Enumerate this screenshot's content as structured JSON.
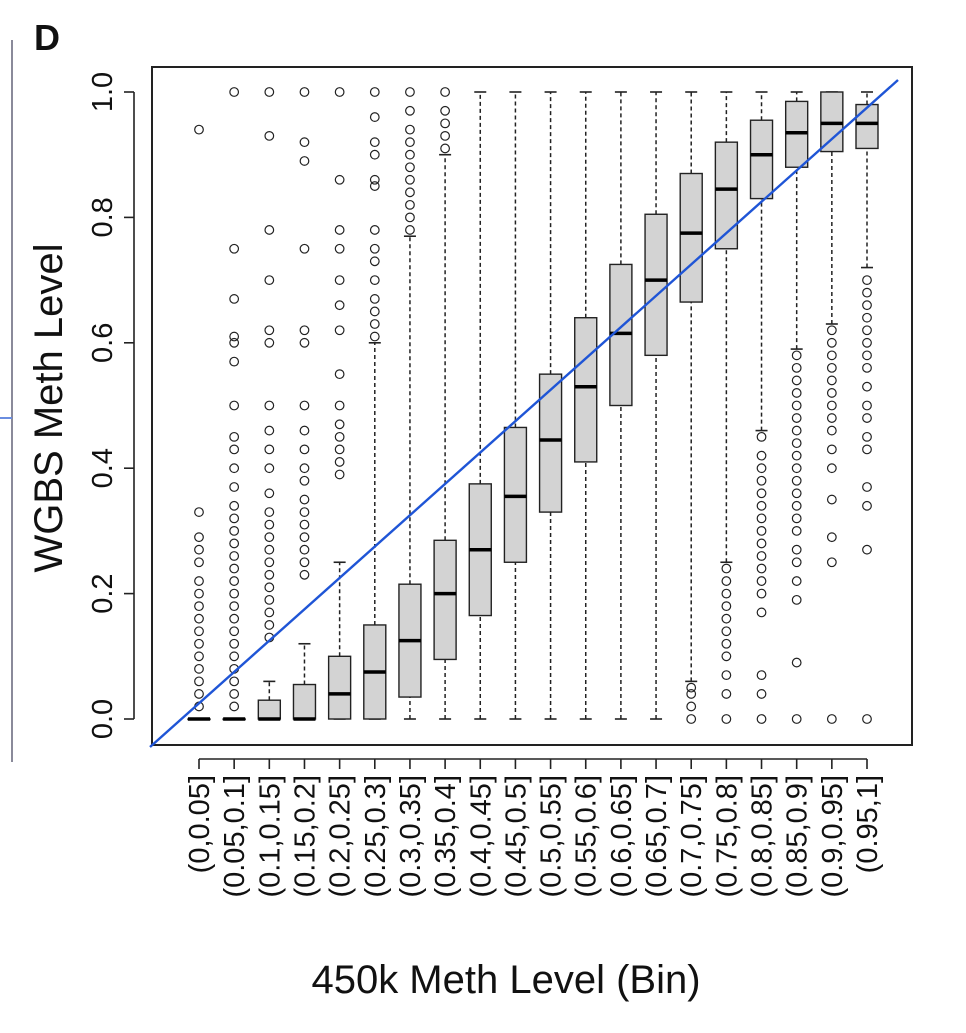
{
  "panel_letter": "D",
  "chart_data": {
    "type": "box",
    "xlabel": "450k Meth Level (Bin)",
    "ylabel": "WGBS Meth Level",
    "ylim": [
      0.0,
      1.0
    ],
    "yticks": [
      0.0,
      0.2,
      0.4,
      0.6,
      0.8,
      1.0
    ],
    "ytick_labels": [
      "0.0",
      "0.2",
      "0.4",
      "0.6",
      "0.8",
      "1.0"
    ],
    "categories": [
      "(0,0.05]",
      "(0.05,0.1]",
      "(0.1,0.15]",
      "(0.15,0.2]",
      "(0.2,0.25]",
      "(0.25,0.3]",
      "(0.3,0.35]",
      "(0.35,0.4]",
      "(0.4,0.45]",
      "(0.45,0.5]",
      "(0.5,0.55]",
      "(0.55,0.6]",
      "(0.6,0.65]",
      "(0.65,0.7]",
      "(0.7,0.75]",
      "(0.75,0.8]",
      "(0.8,0.85]",
      "(0.85,0.9]",
      "(0.9,0.95]",
      "(0.95,1]"
    ],
    "boxes": [
      {
        "min": 0,
        "q1": 0,
        "median": 0,
        "q3": 0,
        "max": 0,
        "outliers": [
          0.02,
          0.04,
          0.06,
          0.08,
          0.1,
          0.12,
          0.14,
          0.16,
          0.18,
          0.2,
          0.22,
          0.25,
          0.27,
          0.29,
          0.33,
          0.94
        ]
      },
      {
        "min": 0,
        "q1": 0,
        "median": 0,
        "q3": 0,
        "max": 0,
        "outliers": [
          0.02,
          0.04,
          0.06,
          0.08,
          0.1,
          0.12,
          0.14,
          0.16,
          0.18,
          0.2,
          0.22,
          0.24,
          0.26,
          0.28,
          0.3,
          0.32,
          0.34,
          0.37,
          0.4,
          0.43,
          0.45,
          0.5,
          0.57,
          0.6,
          0.61,
          0.67,
          0.75,
          1.0
        ]
      },
      {
        "min": 0,
        "q1": 0,
        "median": 0,
        "q3": 0.03,
        "max": 0.06,
        "outliers": [
          0.13,
          0.15,
          0.17,
          0.19,
          0.21,
          0.23,
          0.25,
          0.27,
          0.29,
          0.31,
          0.33,
          0.36,
          0.4,
          0.43,
          0.46,
          0.5,
          0.6,
          0.62,
          0.7,
          0.78,
          0.93,
          1.0
        ]
      },
      {
        "min": 0,
        "q1": 0,
        "median": 0,
        "q3": 0.055,
        "max": 0.12,
        "outliers": [
          0.23,
          0.25,
          0.27,
          0.29,
          0.31,
          0.33,
          0.35,
          0.38,
          0.4,
          0.43,
          0.46,
          0.5,
          0.6,
          0.62,
          0.75,
          0.89,
          0.92,
          1.0
        ]
      },
      {
        "min": 0,
        "q1": 0,
        "median": 0.04,
        "q3": 0.1,
        "max": 0.25,
        "outliers": [
          0.39,
          0.41,
          0.43,
          0.45,
          0.47,
          0.5,
          0.55,
          0.62,
          0.66,
          0.7,
          0.75,
          0.78,
          0.86,
          1.0
        ]
      },
      {
        "min": 0,
        "q1": 0,
        "median": 0.075,
        "q3": 0.15,
        "max": 0.6,
        "outliers": [
          0.61,
          0.63,
          0.65,
          0.67,
          0.7,
          0.73,
          0.75,
          0.78,
          0.85,
          0.86,
          0.9,
          0.92,
          0.96,
          1.0
        ]
      },
      {
        "min": 0,
        "q1": 0.035,
        "median": 0.125,
        "q3": 0.215,
        "max": 0.77,
        "outliers": [
          0.78,
          0.8,
          0.82,
          0.84,
          0.86,
          0.88,
          0.9,
          0.92,
          0.94,
          0.97,
          1.0
        ]
      },
      {
        "min": 0,
        "q1": 0.095,
        "median": 0.2,
        "q3": 0.285,
        "max": 0.9,
        "outliers": [
          0.91,
          0.93,
          0.95,
          0.97,
          1.0
        ]
      },
      {
        "min": 0,
        "q1": 0.165,
        "median": 0.27,
        "q3": 0.375,
        "max": 1.0,
        "outliers": []
      },
      {
        "min": 0,
        "q1": 0.25,
        "median": 0.355,
        "q3": 0.465,
        "max": 1.0,
        "outliers": []
      },
      {
        "min": 0,
        "q1": 0.33,
        "median": 0.445,
        "q3": 0.55,
        "max": 1.0,
        "outliers": []
      },
      {
        "min": 0,
        "q1": 0.41,
        "median": 0.53,
        "q3": 0.64,
        "max": 1.0,
        "outliers": []
      },
      {
        "min": 0,
        "q1": 0.5,
        "median": 0.615,
        "q3": 0.725,
        "max": 1.0,
        "outliers": []
      },
      {
        "min": 0,
        "q1": 0.58,
        "median": 0.7,
        "q3": 0.805,
        "max": 1.0,
        "outliers": []
      },
      {
        "min": 0.06,
        "q1": 0.665,
        "median": 0.775,
        "q3": 0.87,
        "max": 1.0,
        "outliers": [
          0.0,
          0.02,
          0.04,
          0.05
        ]
      },
      {
        "min": 0.25,
        "q1": 0.75,
        "median": 0.845,
        "q3": 0.92,
        "max": 1.0,
        "outliers": [
          0.0,
          0.04,
          0.07,
          0.1,
          0.12,
          0.14,
          0.16,
          0.18,
          0.2,
          0.22,
          0.24
        ]
      },
      {
        "min": 0.46,
        "q1": 0.83,
        "median": 0.9,
        "q3": 0.955,
        "max": 1.0,
        "outliers": [
          0.0,
          0.04,
          0.07,
          0.17,
          0.2,
          0.22,
          0.24,
          0.26,
          0.28,
          0.3,
          0.32,
          0.34,
          0.36,
          0.38,
          0.4,
          0.42,
          0.45
        ]
      },
      {
        "min": 0.59,
        "q1": 0.88,
        "median": 0.935,
        "q3": 0.985,
        "max": 1.0,
        "outliers": [
          0.0,
          0.09,
          0.19,
          0.22,
          0.25,
          0.27,
          0.3,
          0.32,
          0.34,
          0.36,
          0.38,
          0.4,
          0.42,
          0.44,
          0.46,
          0.48,
          0.5,
          0.52,
          0.54,
          0.56,
          0.58
        ]
      },
      {
        "min": 0.63,
        "q1": 0.905,
        "median": 0.95,
        "q3": 1.0,
        "max": 1.0,
        "outliers": [
          0.0,
          0.25,
          0.29,
          0.35,
          0.4,
          0.43,
          0.46,
          0.48,
          0.5,
          0.52,
          0.54,
          0.56,
          0.58,
          0.6,
          0.62
        ]
      },
      {
        "min": 0.72,
        "q1": 0.91,
        "median": 0.95,
        "q3": 0.98,
        "max": 1.0,
        "outliers": [
          0.0,
          0.27,
          0.34,
          0.37,
          0.43,
          0.45,
          0.48,
          0.5,
          0.53,
          0.56,
          0.58,
          0.6,
          0.62,
          0.64,
          0.66,
          0.68,
          0.7
        ]
      }
    ],
    "reference_line": {
      "slope": 1,
      "intercept": 0,
      "color": "#1f55d6"
    },
    "box_fill": "#d3d3d3",
    "grid": false,
    "legend": "none"
  }
}
